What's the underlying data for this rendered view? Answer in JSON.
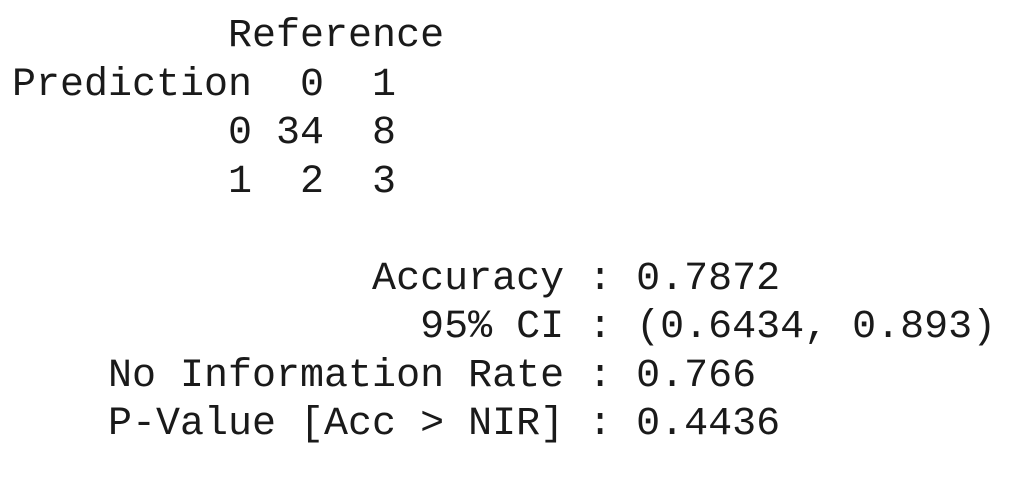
{
  "confusion_matrix": {
    "header_line": "         Reference",
    "column_header_line": "Prediction  0  1",
    "rows": [
      "         0 34  8",
      "         1  2  3"
    ]
  },
  "statistics": [
    "               Accuracy : 0.7872",
    "                 95% CI : (0.6434, 0.893)",
    "    No Information Rate : 0.766",
    "    P-Value [Acc > NIR] : 0.4436"
  ]
}
